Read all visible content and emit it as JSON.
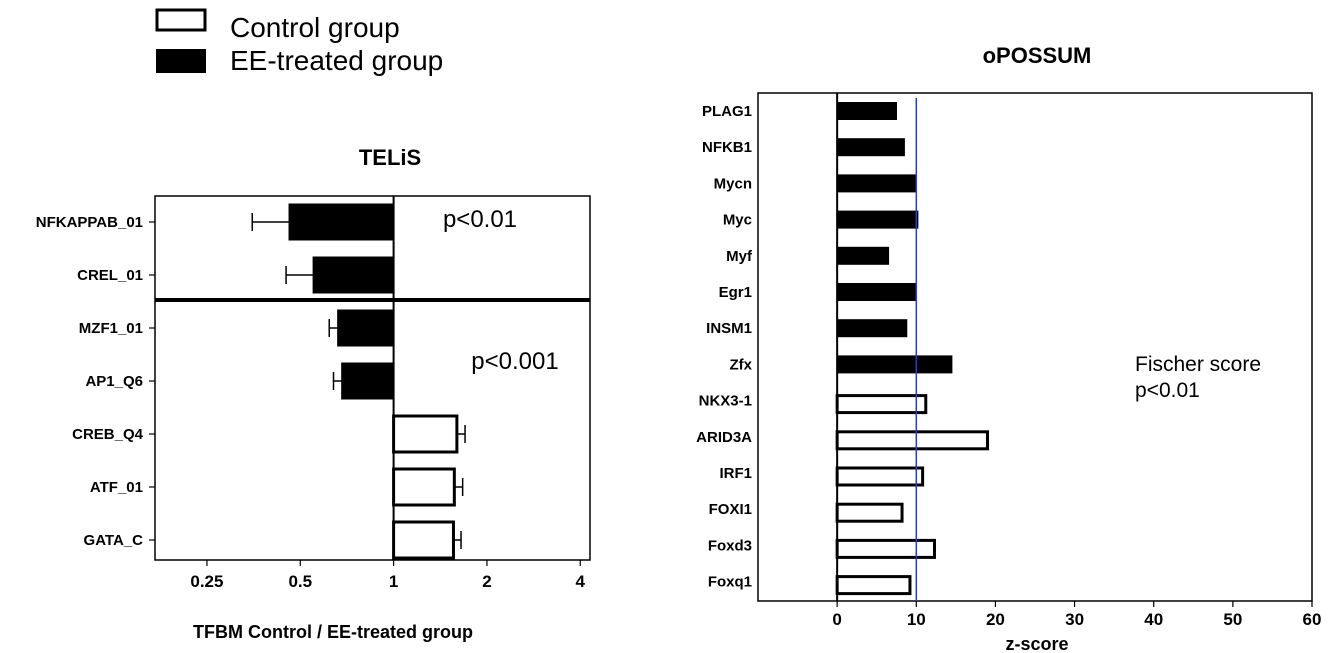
{
  "legend": {
    "items": [
      {
        "label": "Control group",
        "fill": "#ffffff"
      },
      {
        "label": "EE-treated group",
        "fill": "#000000"
      }
    ]
  },
  "chart_data": [
    {
      "type": "bar",
      "orientation": "horizontal",
      "title": "TELiS",
      "xlabel": "TFBM Control / EE-treated group",
      "ylabel": "",
      "x_scale": "log2",
      "xlim": [
        0.17,
        4.3
      ],
      "x_ticks": [
        0.25,
        0.5,
        1,
        2,
        4
      ],
      "x_tick_labels": [
        "0.25",
        "0.5",
        "1",
        "2",
        "4"
      ],
      "baseline": 1,
      "categories": [
        "NFKAPPAB_01",
        "CREL_01",
        "MZF1_01",
        "AP1_Q6",
        "CREB_Q4",
        "ATF_01",
        "GATA_C"
      ],
      "values": [
        0.46,
        0.55,
        0.66,
        0.68,
        1.6,
        1.57,
        1.56
      ],
      "error": [
        0.11,
        0.1,
        0.04,
        0.04,
        0.1,
        0.1,
        0.09
      ],
      "groups": [
        "EE-treated group",
        "EE-treated group",
        "EE-treated group",
        "EE-treated group",
        "Control group",
        "Control group",
        "Control group"
      ],
      "annotations": [
        "p<0.01",
        "p<0.001"
      ],
      "grid": false
    },
    {
      "type": "bar",
      "orientation": "horizontal",
      "title": "oPOSSUM",
      "xlabel": "z-score",
      "ylabel": "",
      "xlim": [
        -10,
        60
      ],
      "x_ticks": [
        0,
        10,
        20,
        30,
        40,
        50,
        60
      ],
      "x_tick_labels": [
        "0",
        "10",
        "20",
        "30",
        "40",
        "50",
        "60"
      ],
      "reference_line": 10,
      "reference_color": "#1f3fd6",
      "categories": [
        "PLAG1",
        "NFKB1",
        "Mycn",
        "Myc",
        "Myf",
        "Egr1",
        "INSM1",
        "Zfx",
        "NKX3-1",
        "ARID3A",
        "IRF1",
        "FOXI1",
        "Foxd3",
        "Foxq1"
      ],
      "values": [
        7.5,
        8.5,
        10,
        10.2,
        6.5,
        10,
        8.8,
        14.5,
        11.2,
        19,
        10.8,
        8.2,
        12.3,
        9.2
      ],
      "groups": [
        "EE-treated group",
        "EE-treated group",
        "EE-treated group",
        "EE-treated group",
        "EE-treated group",
        "EE-treated group",
        "EE-treated group",
        "EE-treated group",
        "Control group",
        "Control group",
        "Control group",
        "Control group",
        "Control group",
        "Control group"
      ],
      "annotations": [
        "Fischer score",
        "p<0.01"
      ],
      "grid": false
    }
  ]
}
